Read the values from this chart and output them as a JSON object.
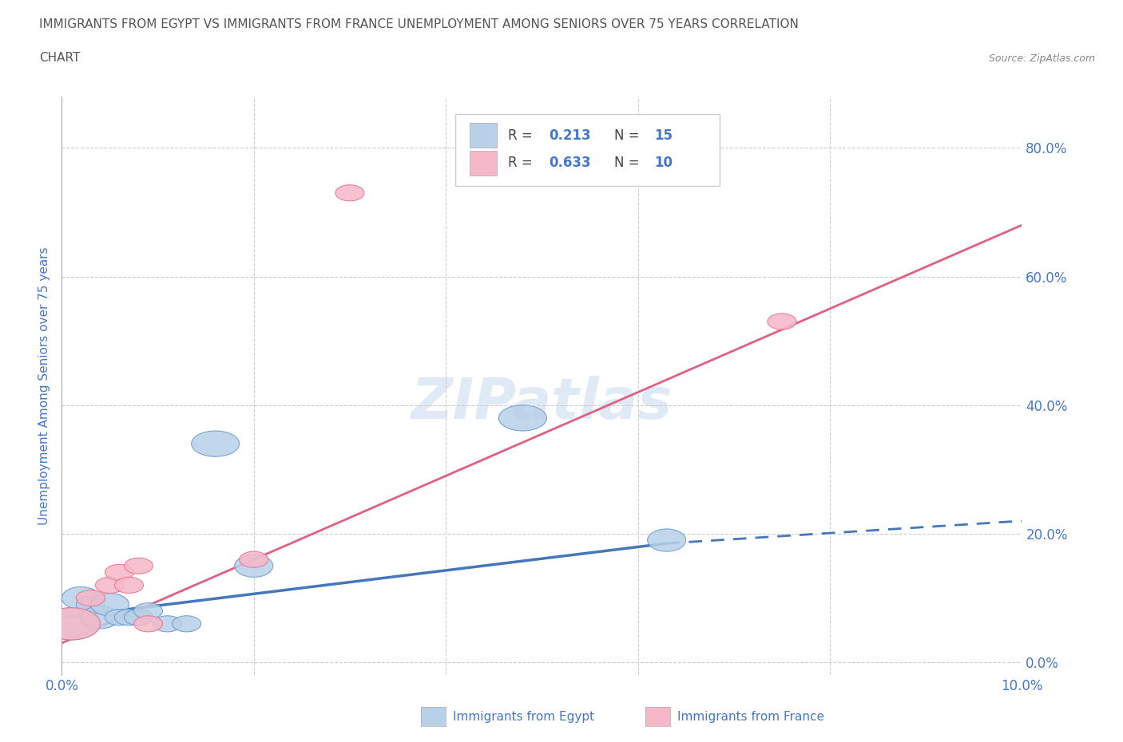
{
  "title_line1": "IMMIGRANTS FROM EGYPT VS IMMIGRANTS FROM FRANCE UNEMPLOYMENT AMONG SENIORS OVER 75 YEARS CORRELATION",
  "title_line2": "CHART",
  "source": "Source: ZipAtlas.com",
  "ylabel": "Unemployment Among Seniors over 75 years",
  "watermark": "ZIPatlas",
  "legend_egypt": "Immigrants from Egypt",
  "legend_france": "Immigrants from France",
  "R_egypt": 0.213,
  "N_egypt": 15,
  "R_france": 0.633,
  "N_france": 10,
  "color_egypt_fill": "#b8d0e8",
  "color_france_fill": "#f5b8c8",
  "color_egypt_edge": "#6699cc",
  "color_france_edge": "#e87090",
  "color_egypt_line": "#4477bb",
  "color_france_line": "#e06080",
  "color_text_blue": "#4477cc",
  "color_grid": "#cccccc",
  "xlim": [
    0.0,
    0.1
  ],
  "ylim": [
    -0.02,
    0.88
  ],
  "yticks": [
    0.0,
    0.2,
    0.4,
    0.6,
    0.8
  ],
  "xticks": [
    0.0,
    0.02,
    0.04,
    0.06,
    0.08,
    0.1
  ],
  "egypt_x": [
    0.001,
    0.002,
    0.003,
    0.004,
    0.005,
    0.006,
    0.007,
    0.008,
    0.009,
    0.011,
    0.013,
    0.016,
    0.02,
    0.048,
    0.063
  ],
  "egypt_y": [
    0.06,
    0.1,
    0.09,
    0.07,
    0.09,
    0.07,
    0.07,
    0.07,
    0.08,
    0.06,
    0.06,
    0.34,
    0.15,
    0.38,
    0.19
  ],
  "egypt_w": [
    0.006,
    0.004,
    0.003,
    0.004,
    0.004,
    0.003,
    0.003,
    0.003,
    0.003,
    0.003,
    0.003,
    0.005,
    0.004,
    0.005,
    0.004
  ],
  "egypt_h": [
    0.05,
    0.035,
    0.025,
    0.035,
    0.035,
    0.025,
    0.025,
    0.025,
    0.025,
    0.025,
    0.025,
    0.04,
    0.035,
    0.04,
    0.035
  ],
  "france_x": [
    0.001,
    0.003,
    0.005,
    0.006,
    0.007,
    0.008,
    0.009,
    0.02,
    0.03,
    0.075
  ],
  "france_y": [
    0.06,
    0.1,
    0.12,
    0.14,
    0.12,
    0.15,
    0.06,
    0.16,
    0.73,
    0.53
  ],
  "france_w": [
    0.006,
    0.003,
    0.003,
    0.003,
    0.003,
    0.003,
    0.003,
    0.003,
    0.003,
    0.003
  ],
  "france_h": [
    0.05,
    0.025,
    0.025,
    0.025,
    0.025,
    0.025,
    0.025,
    0.025,
    0.025,
    0.025
  ],
  "egypt_line_x0": 0.0,
  "egypt_line_x1": 0.063,
  "egypt_line_xdash1": 0.1,
  "france_line_x0": 0.0,
  "france_line_x1": 0.1,
  "egypt_line_y_at0": 0.07,
  "egypt_line_y_at063": 0.185,
  "egypt_line_y_at10": 0.22,
  "france_line_y_at0": 0.03,
  "france_line_y_at10": 0.68
}
